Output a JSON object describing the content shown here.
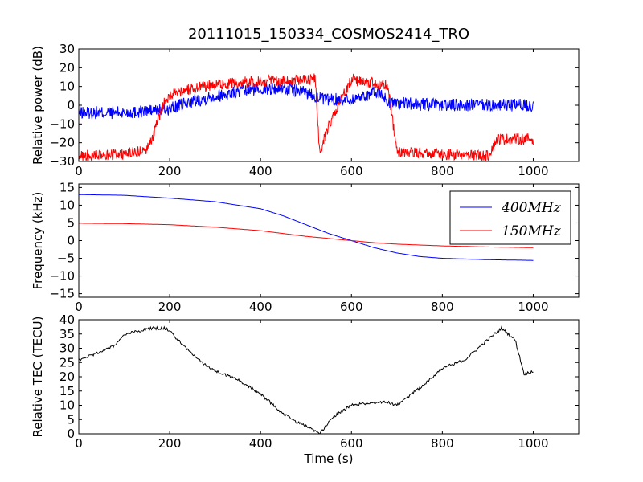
{
  "chart_data": [
    {
      "type": "line",
      "title": "20111015_150334_COSMOS2414_TRO",
      "ylabel": "Relative power (dB)",
      "xlabel": "",
      "xlim": [
        0,
        1100
      ],
      "ylim": [
        -30,
        30
      ],
      "xticks": [
        "0",
        "200",
        "400",
        "600",
        "800",
        "1000"
      ],
      "yticks": [
        "−30",
        "−20",
        "−10",
        "0",
        "10",
        "20",
        "30"
      ],
      "series": [
        {
          "color": "#0000ff",
          "noise": 3.5,
          "x": [
            0,
            100,
            160,
            200,
            250,
            300,
            350,
            400,
            450,
            500,
            540,
            600,
            640,
            660,
            680,
            700,
            800,
            900,
            1000
          ],
          "y": [
            -4,
            -4,
            -3,
            -2,
            2,
            5,
            7,
            9,
            9,
            7,
            3,
            3,
            6,
            7,
            2,
            1,
            0,
            0,
            0
          ]
        },
        {
          "color": "#ff0000",
          "noise": 3,
          "x": [
            0,
            100,
            150,
            165,
            185,
            200,
            230,
            300,
            400,
            450,
            500,
            520,
            530,
            560,
            600,
            610,
            650,
            680,
            700,
            800,
            900,
            920,
            1000
          ],
          "y": [
            -27,
            -26,
            -24,
            -15,
            0,
            5,
            8,
            11,
            13,
            13,
            14,
            14,
            -25,
            -5,
            14,
            13,
            12,
            11,
            -25,
            -26,
            -27,
            -18,
            -18
          ]
        }
      ]
    },
    {
      "type": "line",
      "title": "",
      "ylabel": "Frequency (kHz)",
      "xlabel": "",
      "xlim": [
        0,
        1100
      ],
      "ylim": [
        -16,
        16
      ],
      "xticks": [
        "0",
        "200",
        "400",
        "600",
        "800",
        "1000"
      ],
      "yticks": [
        "−15",
        "−10",
        "−5",
        "0",
        "5",
        "10",
        "15"
      ],
      "legend": {
        "position": "top-right",
        "entries": [
          "400MHz",
          "150MHz"
        ]
      },
      "series": [
        {
          "name": "400MHz",
          "color": "#0000ff",
          "x": [
            0,
            100,
            200,
            300,
            400,
            450,
            500,
            550,
            600,
            650,
            700,
            750,
            800,
            900,
            1000
          ],
          "y": [
            13,
            12.8,
            12,
            11,
            9,
            7,
            4.5,
            2,
            0,
            -2,
            -3.5,
            -4.5,
            -5,
            -5.4,
            -5.6
          ]
        },
        {
          "name": "150MHz",
          "color": "#ff0000",
          "x": [
            0,
            100,
            200,
            300,
            400,
            500,
            550,
            600,
            650,
            700,
            800,
            900,
            1000
          ],
          "y": [
            4.9,
            4.8,
            4.5,
            3.8,
            2.8,
            1.2,
            0.6,
            0,
            -0.6,
            -1,
            -1.5,
            -1.8,
            -2
          ]
        }
      ]
    },
    {
      "type": "line",
      "title": "",
      "ylabel": "Relative TEC (TECU)",
      "xlabel": "Time (s)",
      "xlim": [
        0,
        1100
      ],
      "ylim": [
        0,
        40
      ],
      "xticks": [
        "0",
        "200",
        "400",
        "600",
        "800",
        "1000"
      ],
      "yticks": [
        "0",
        "5",
        "10",
        "15",
        "20",
        "25",
        "30",
        "35",
        "40"
      ],
      "series": [
        {
          "color": "#000000",
          "x": [
            0,
            20,
            50,
            80,
            100,
            130,
            160,
            190,
            200,
            230,
            270,
            300,
            350,
            400,
            450,
            480,
            510,
            530,
            560,
            600,
            650,
            680,
            700,
            750,
            800,
            850,
            900,
            930,
            960,
            980,
            1000
          ],
          "y": [
            26,
            27,
            29,
            31,
            35,
            36,
            37,
            37,
            36,
            31,
            25,
            22,
            19,
            14,
            7,
            4,
            2,
            0,
            6,
            10,
            11,
            11,
            10,
            16,
            23,
            26,
            33,
            37,
            33,
            21,
            22
          ]
        }
      ]
    }
  ]
}
